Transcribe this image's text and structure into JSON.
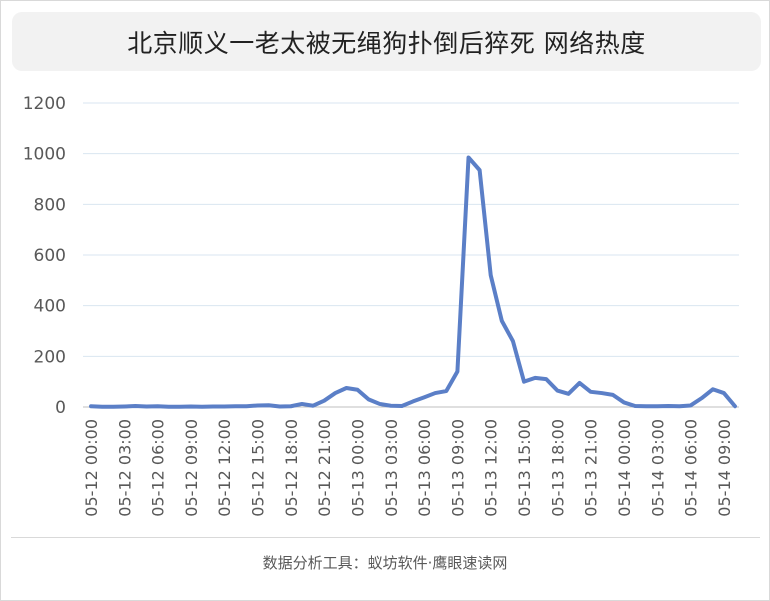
{
  "chart_data": {
    "type": "line",
    "title": "北京顺义一老太被无绳狗扑倒后猝死  网络热度",
    "xlabel": "",
    "ylabel": "",
    "ylim": [
      0,
      1200
    ],
    "yticks": [
      0,
      200,
      400,
      600,
      800,
      1000,
      1200
    ],
    "grid": true,
    "legend": "none",
    "line_color": "#5b7fc7",
    "tick_labels": [
      "05-12 00:00",
      "05-12 03:00",
      "05-12 06:00",
      "05-12 09:00",
      "05-12 12:00",
      "05-12 15:00",
      "05-12 18:00",
      "05-12 21:00",
      "05-13 00:00",
      "05-13 03:00",
      "05-13 06:00",
      "05-13 09:00",
      "05-13 12:00",
      "05-13 15:00",
      "05-13 18:00",
      "05-13 21:00",
      "05-14 00:00",
      "05-14 03:00",
      "05-14 06:00",
      "05-14 09:00"
    ],
    "x": [
      "05-12 00:00",
      "05-12 01:00",
      "05-12 02:00",
      "05-12 03:00",
      "05-12 04:00",
      "05-12 05:00",
      "05-12 06:00",
      "05-12 07:00",
      "05-12 08:00",
      "05-12 09:00",
      "05-12 10:00",
      "05-12 11:00",
      "05-12 12:00",
      "05-12 13:00",
      "05-12 14:00",
      "05-12 15:00",
      "05-12 16:00",
      "05-12 17:00",
      "05-12 18:00",
      "05-12 19:00",
      "05-12 20:00",
      "05-12 21:00",
      "05-12 22:00",
      "05-12 23:00",
      "05-13 00:00",
      "05-13 01:00",
      "05-13 02:00",
      "05-13 03:00",
      "05-13 04:00",
      "05-13 05:00",
      "05-13 06:00",
      "05-13 07:00",
      "05-13 08:00",
      "05-13 09:00",
      "05-13 10:00",
      "05-13 11:00",
      "05-13 12:00",
      "05-13 13:00",
      "05-13 14:00",
      "05-13 15:00",
      "05-13 16:00",
      "05-13 17:00",
      "05-13 18:00",
      "05-13 19:00",
      "05-13 20:00",
      "05-13 21:00",
      "05-13 22:00",
      "05-13 23:00",
      "05-14 00:00",
      "05-14 01:00",
      "05-14 02:00",
      "05-14 03:00",
      "05-14 04:00",
      "05-14 05:00",
      "05-14 06:00",
      "05-14 07:00",
      "05-14 08:00",
      "05-14 09:00",
      "05-14 10:00"
    ],
    "values": [
      3,
      1,
      1,
      2,
      4,
      2,
      3,
      1,
      1,
      2,
      1,
      2,
      2,
      3,
      3,
      6,
      7,
      2,
      3,
      12,
      5,
      25,
      55,
      75,
      68,
      30,
      12,
      5,
      4,
      22,
      38,
      55,
      63,
      140,
      985,
      935,
      520,
      340,
      260,
      100,
      115,
      110,
      65,
      52,
      95,
      60,
      55,
      48,
      18,
      4,
      3,
      3,
      4,
      3,
      6,
      35,
      70,
      55,
      3
    ]
  },
  "footer": {
    "source": "数据分析工具：蚁坊软件·鹰眼速读网"
  }
}
